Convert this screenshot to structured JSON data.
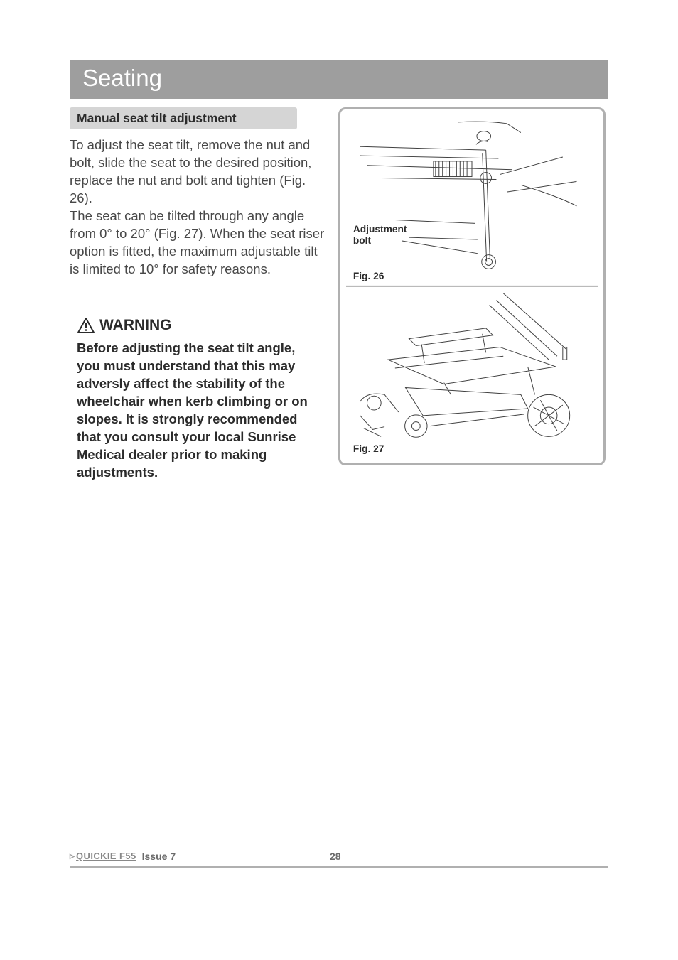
{
  "colors": {
    "title_bar_bg": "#9e9e9e",
    "title_text": "#ffffff",
    "sub_header_bg": "#d5d5d5",
    "body_text": "#484848",
    "warn_text": "#2b2b2b",
    "frame_border": "#b0b0b0",
    "footer_text": "#6b6b6b",
    "page_bg": "#ffffff",
    "diagram_stroke": "#404040"
  },
  "typography": {
    "title_fontsize": 33,
    "subheader_fontsize": 17.5,
    "body_fontsize": 18.5,
    "warning_title_fontsize": 21,
    "fig_label_fontsize": 14,
    "footer_fontsize": 14
  },
  "title": "Seating",
  "subheader": "Manual seat tilt adjustment",
  "body": "To adjust the seat tilt, remove the nut and bolt, slide the seat to the desired position, replace the nut and bolt and tighten (Fig. 26).\nThe seat can be tilted through any angle from 0° to 20° (Fig. 27). When the seat riser option is fitted, the maximum adjustable tilt is limited to 10° for safety reasons.",
  "warning": {
    "title": "WARNING",
    "body": "Before adjusting the seat tilt angle, you must understand that this may adversly affect the stability of the wheelchair when kerb climbing or on slopes. It is strongly recommended that you consult your local Sunrise Medical dealer prior to making adjustments."
  },
  "figures": {
    "frame_border_radius": 10,
    "frame_border_width": 3,
    "fig26": {
      "label1": "Adjustment",
      "label2": "bolt",
      "caption": "Fig. 26"
    },
    "fig27": {
      "caption": "Fig. 27"
    }
  },
  "footer": {
    "brand_prefix": "▹",
    "brand": "QUICKIE F55",
    "issue": "Issue 7",
    "page_number": "28"
  }
}
